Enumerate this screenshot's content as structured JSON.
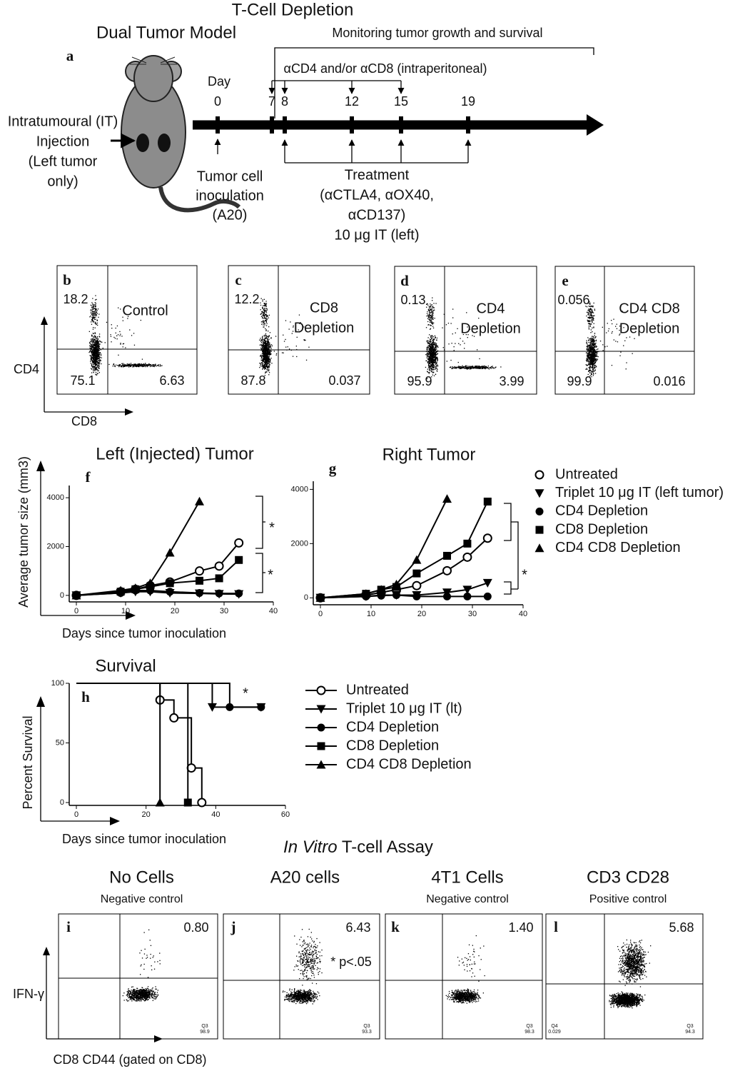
{
  "panel_a": {
    "title": "T-Cell Depletion",
    "model": "Dual Tumor Model",
    "letter": "a",
    "monitoring": "Monitoring tumor growth and survival",
    "depletion": "αCD4 and/or αCD8 (intraperitoneal)",
    "day_label": "Day",
    "days": [
      0,
      7,
      8,
      12,
      15,
      19
    ],
    "injection": [
      "Intratumoural (IT)",
      "Injection",
      "(Left  tumor",
      "only)"
    ],
    "inoculation": [
      "Tumor cell",
      "inoculation",
      "(A20)"
    ],
    "treatment": [
      "Treatment",
      "(αCTLA4, αOX40,",
      "αCD137)",
      "10 μg IT (left)"
    ]
  },
  "flow_top": {
    "y_axis": "CD4",
    "x_axis": "CD8",
    "panels": [
      {
        "letter": "b",
        "upper_left": 18.2,
        "label": [
          "Control"
        ],
        "lower_left": 75.1,
        "lower_right": 6.63
      },
      {
        "letter": "c",
        "upper_left": 12.2,
        "label": [
          "CD8",
          "Depletion"
        ],
        "lower_left": 87.8,
        "lower_right": 0.037
      },
      {
        "letter": "d",
        "upper_left": 0.13,
        "label": [
          "CD4",
          "Depletion"
        ],
        "lower_left": 95.9,
        "lower_right": 3.99
      },
      {
        "letter": "e",
        "upper_left": 0.056,
        "label": [
          "CD4 CD8",
          "Depletion"
        ],
        "lower_left": 99.9,
        "lower_right": 0.016
      }
    ]
  },
  "flow_bottom": {
    "title_italic": "In Vitro",
    "title_rest": "T-cell Assay",
    "y_axis": "IFN-γ",
    "x_axis": "CD8 CD44 (gated on CD8)",
    "panels": [
      {
        "heading": "No Cells",
        "subheading": "Negative control",
        "letter": "i",
        "upper_right": "0.80",
        "gate": [
          "Q3",
          "98.9"
        ]
      },
      {
        "heading": "A20 cells",
        "letter": "j",
        "upper_right": 6.43,
        "note": "* p<.05",
        "gate": [
          "Q3",
          "93.3"
        ]
      },
      {
        "heading": "4T1 Cells",
        "subheading": "Negative control",
        "letter": "k",
        "upper_right": "1.40",
        "gate": [
          "Q3",
          "98.3"
        ]
      },
      {
        "heading": "CD3 CD28",
        "subheading": "Positive control",
        "letter": "l",
        "upper_right": 5.68,
        "gate": [
          "Q3",
          "94.3"
        ],
        "gate_left": [
          "Q4",
          "0.029"
        ]
      }
    ]
  },
  "chart_data": [
    {
      "type": "line",
      "title": "Left (Injected) Tumor",
      "panel": "f",
      "y_label": "Average tumor size (mm3)",
      "x_label": "Days since tumor inoculation",
      "x": [
        0,
        9,
        12,
        15,
        19,
        25,
        29,
        33
      ],
      "xlim": [
        0,
        40
      ],
      "xticks": [
        0,
        10,
        20,
        30,
        40
      ],
      "ylim": [
        -150,
        4500
      ],
      "yticks": [
        0,
        2000,
        4000
      ],
      "series": [
        {
          "marker": "circle-open",
          "color": "#000000",
          "values": [
            0,
            150,
            250,
            400,
            550,
            1000,
            1200,
            2150
          ]
        },
        {
          "marker": "triangle-down",
          "color": "#000000",
          "values": [
            0,
            100,
            150,
            150,
            100,
            80,
            60,
            50
          ]
        },
        {
          "marker": "circle",
          "color": "#000000",
          "values": [
            0,
            100,
            200,
            200,
            150,
            100,
            80,
            80
          ]
        },
        {
          "marker": "square",
          "color": "#000000",
          "values": [
            0,
            150,
            250,
            350,
            500,
            600,
            700,
            1450
          ]
        },
        {
          "marker": "triangle",
          "color": "#000000",
          "values": [
            0,
            200,
            300,
            500,
            1750,
            3850,
            null,
            null
          ]
        }
      ],
      "annotations": [
        "*",
        "*"
      ]
    },
    {
      "type": "line",
      "title": "Right Tumor",
      "panel": "g",
      "x": [
        0,
        9,
        12,
        15,
        19,
        25,
        29,
        33
      ],
      "xlim": [
        0,
        40
      ],
      "xticks": [
        0,
        10,
        20,
        30,
        40
      ],
      "ylim": [
        -150,
        4300
      ],
      "yticks": [
        0,
        2000,
        4000
      ],
      "legend": "right",
      "series": [
        {
          "name": "Untreated",
          "marker": "circle-open",
          "color": "#000000",
          "values": [
            0,
            100,
            200,
            300,
            450,
            1000,
            1500,
            2200
          ]
        },
        {
          "name": "Triplet 10 μg IT (left tumor)",
          "marker": "triangle-down",
          "color": "#000000",
          "values": [
            0,
            50,
            100,
            100,
            100,
            200,
            300,
            550
          ]
        },
        {
          "name": "CD4 Depletion",
          "marker": "circle",
          "color": "#000000",
          "values": [
            0,
            50,
            80,
            100,
            50,
            50,
            50,
            50
          ]
        },
        {
          "name": "CD8 Depletion",
          "marker": "square",
          "color": "#000000",
          "values": [
            0,
            150,
            300,
            400,
            900,
            1550,
            2000,
            3550
          ]
        },
        {
          "name": "CD4 CD8 Depletion",
          "marker": "triangle",
          "color": "#000000",
          "values": [
            0,
            150,
            300,
            500,
            1400,
            3650,
            null,
            null
          ]
        }
      ],
      "annotations": [
        "*"
      ]
    },
    {
      "type": "line",
      "step": true,
      "title": "Survival",
      "panel": "h",
      "y_label": "Percent Survival",
      "x_label": "Days since tumor inoculation",
      "xlim": [
        0,
        60
      ],
      "xticks": [
        0,
        20,
        40,
        60
      ],
      "ylim": [
        0,
        100
      ],
      "yticks": [
        0,
        50,
        100
      ],
      "legend": "right",
      "series": [
        {
          "name": "Untreated",
          "marker": "circle-open",
          "color": "#000000",
          "x": [
            0,
            24,
            28,
            33,
            36
          ],
          "values": [
            100,
            86,
            71,
            29,
            0
          ]
        },
        {
          "name": "Triplet 10 μg IT (lt)",
          "marker": "triangle-down",
          "color": "#000000",
          "x": [
            0,
            39,
            53
          ],
          "values": [
            100,
            80,
            80
          ]
        },
        {
          "name": "CD4 Depletion",
          "marker": "circle",
          "color": "#000000",
          "x": [
            0,
            44,
            53
          ],
          "values": [
            100,
            80,
            80
          ]
        },
        {
          "name": "CD8 Depletion",
          "marker": "square",
          "color": "#000000",
          "x": [
            0,
            32
          ],
          "values": [
            100,
            0
          ]
        },
        {
          "name": "CD4 CD8 Depletion",
          "marker": "triangle",
          "color": "#000000",
          "x": [
            0,
            24
          ],
          "values": [
            100,
            0
          ]
        }
      ],
      "annotations": [
        "*"
      ]
    }
  ]
}
